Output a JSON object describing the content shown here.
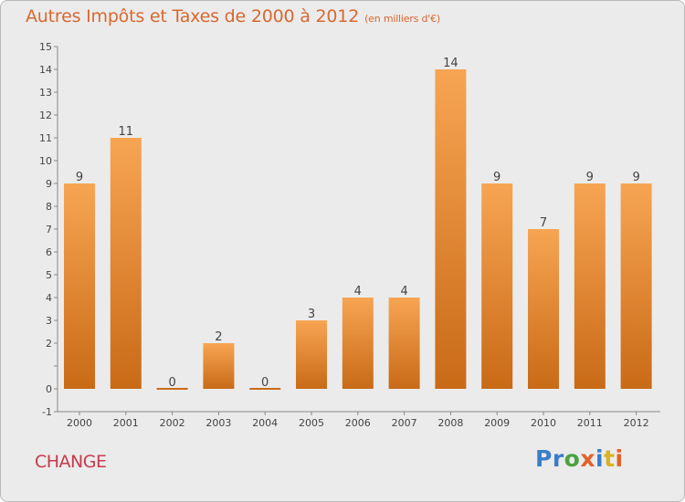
{
  "header": {
    "title": "Autres Impôts et Taxes de 2000 à 2012",
    "unit": "(en milliers d'€)"
  },
  "footer": {
    "commune": "CHANGE",
    "logo_text": "Proxiti",
    "logo_colors": [
      "#3a7dc9",
      "#3a7dc9",
      "#4aa33f",
      "#e2622b",
      "#3a7dc9",
      "#d9b21f",
      "#e2622b"
    ]
  },
  "colors": {
    "bar_light": "#f7a553",
    "bar_dark": "#c96a17",
    "title": "#d8682f",
    "commune": "#c63a4c",
    "background": "#ebebeb"
  },
  "chart_data": {
    "type": "bar",
    "title": "Autres Impôts et Taxes de 2000 à 2012",
    "categories": [
      "2000",
      "2001",
      "2002",
      "2003",
      "2004",
      "2005",
      "2006",
      "2007",
      "2008",
      "2009",
      "2010",
      "2011",
      "2012"
    ],
    "values": [
      9,
      11,
      0,
      2,
      0,
      3,
      4,
      4,
      14,
      9,
      7,
      9,
      9
    ],
    "data_labels": [
      "9",
      "11",
      "0",
      "2",
      "0",
      "3",
      "4",
      "4",
      "14",
      "9",
      "7",
      "9",
      "9"
    ],
    "ylim": [
      -1,
      15
    ],
    "yticks": [
      -1,
      0,
      1,
      2,
      3,
      4,
      5,
      6,
      7,
      8,
      9,
      10,
      11,
      12,
      13,
      14,
      15
    ],
    "ytick_labels": [
      "-1",
      "0",
      "",
      "2",
      "3",
      "4",
      "5",
      "6",
      "7",
      "8",
      "9",
      "10",
      "11",
      "12",
      "13",
      "14",
      "15"
    ],
    "grid": false
  }
}
